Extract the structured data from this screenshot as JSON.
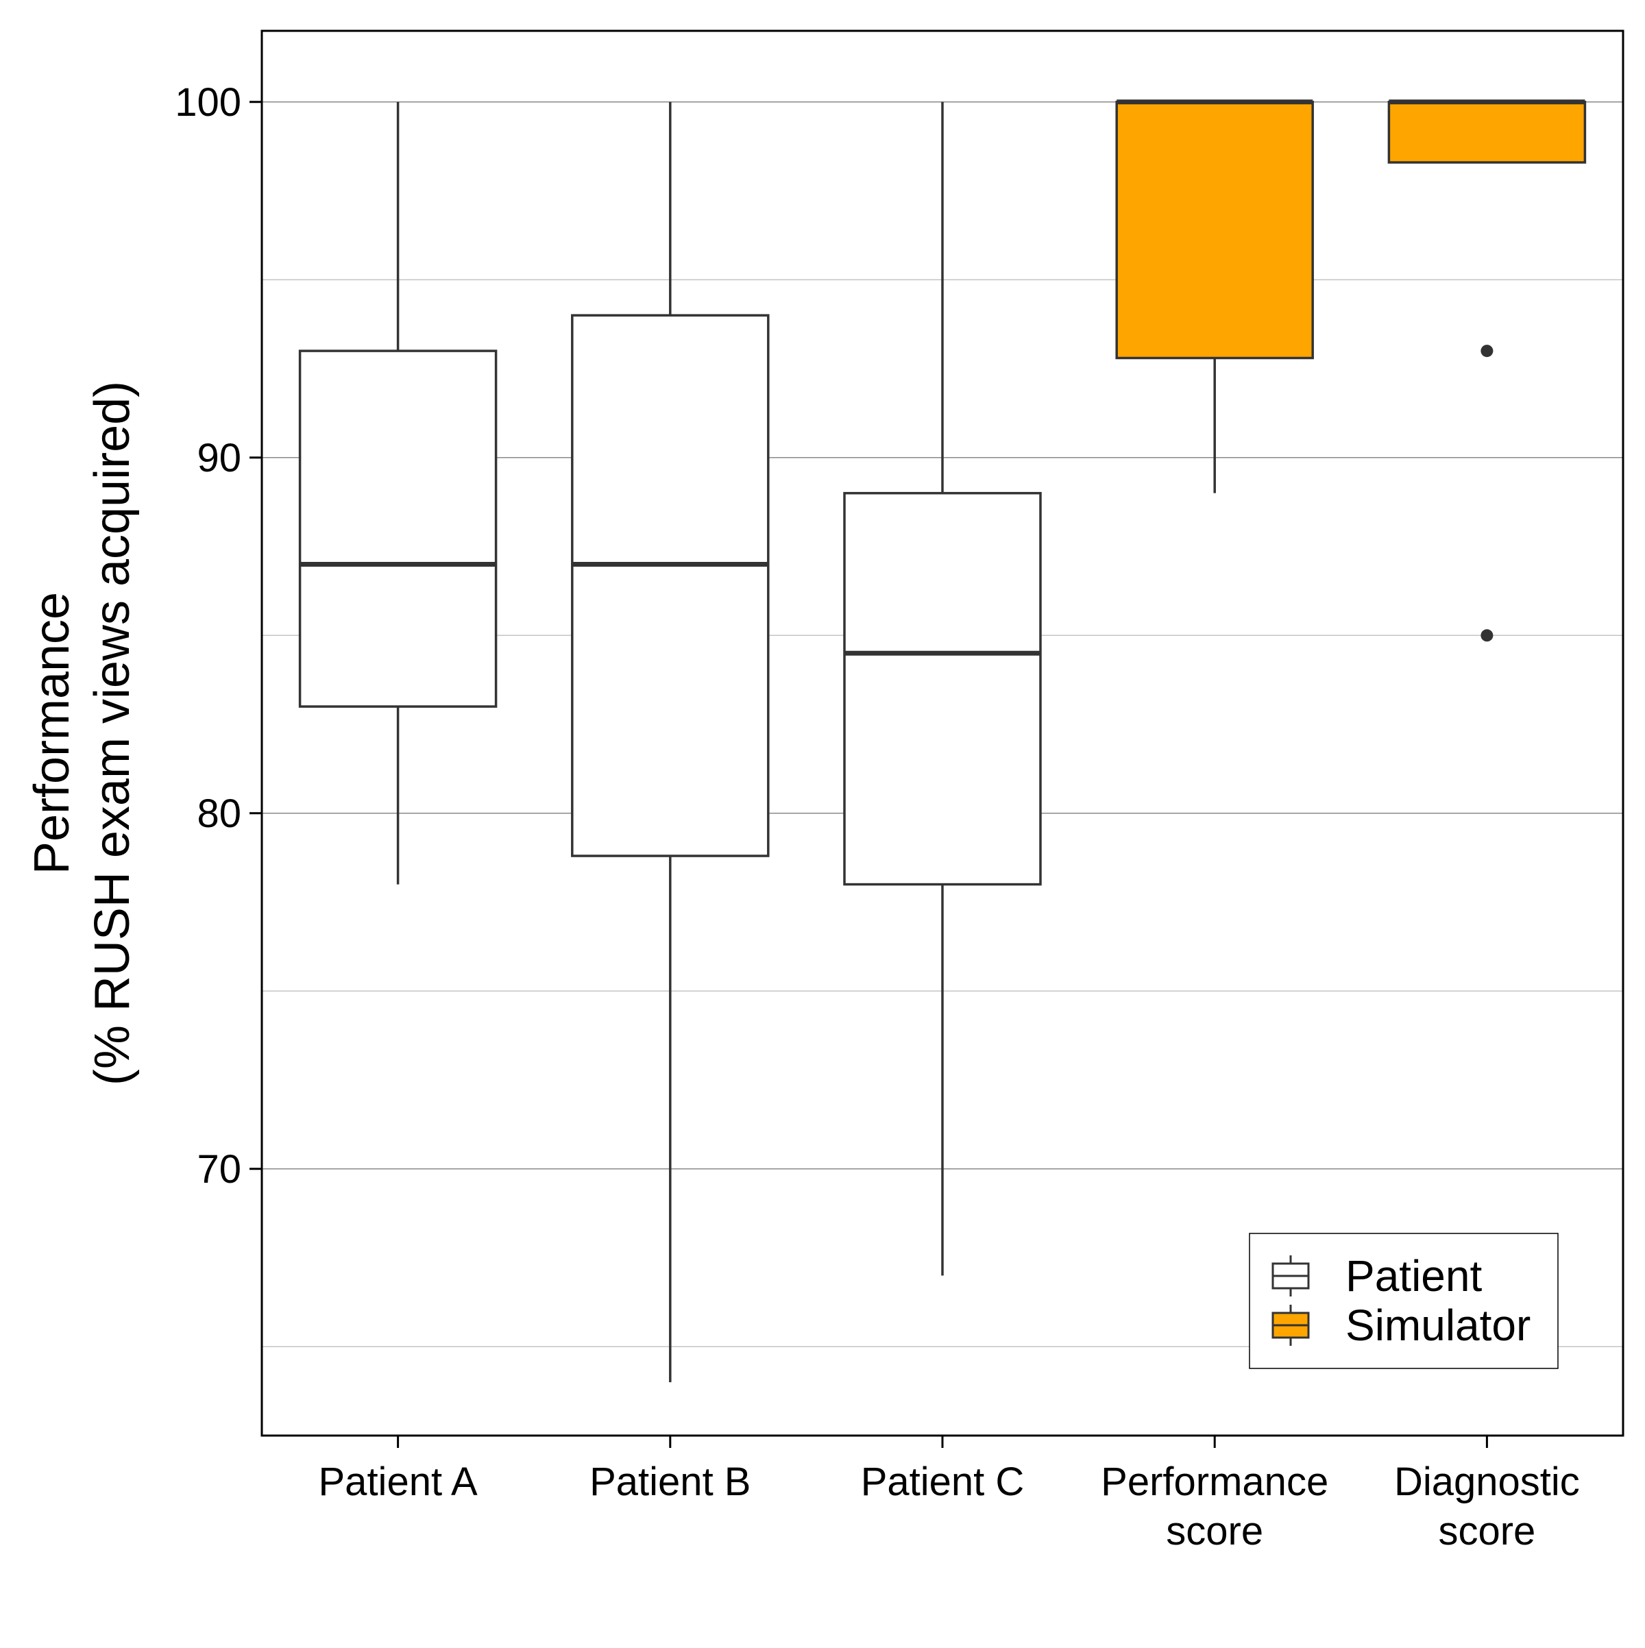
{
  "chart_data": {
    "type": "boxplot",
    "ylabel": [
      "Performance",
      "(% RUSH exam views acquired)"
    ],
    "xlabel": "",
    "ylim": [
      62.5,
      102
    ],
    "yticks": [
      70,
      80,
      90,
      100
    ],
    "minor_gridlines": [
      65,
      75,
      85,
      95
    ],
    "grid": true,
    "legend": {
      "position": "bottom-right",
      "entries": [
        {
          "key": "patient",
          "label": "Patient",
          "color": "#ffffff"
        },
        {
          "key": "simulator",
          "label": "Simulator",
          "color": "#FFA500"
        }
      ]
    },
    "categories": [
      {
        "label": [
          "Patient A"
        ],
        "group": "patient",
        "whisker_low": 78,
        "q1": 83,
        "median": 87,
        "q3": 93,
        "whisker_high": 100,
        "outliers": []
      },
      {
        "label": [
          "Patient B"
        ],
        "group": "patient",
        "whisker_low": 64,
        "q1": 78.8,
        "median": 87,
        "q3": 94,
        "whisker_high": 100,
        "outliers": []
      },
      {
        "label": [
          "Patient C"
        ],
        "group": "patient",
        "whisker_low": 67,
        "q1": 78,
        "median": 84.5,
        "q3": 89,
        "whisker_high": 100,
        "outliers": []
      },
      {
        "label": [
          "Performance",
          "score"
        ],
        "group": "simulator",
        "whisker_low": 89,
        "q1": 92.8,
        "median": 100,
        "q3": 100,
        "whisker_high": 100,
        "outliers": []
      },
      {
        "label": [
          "Diagnostic",
          "score"
        ],
        "group": "simulator",
        "whisker_low": 98.3,
        "q1": 98.3,
        "median": 100,
        "q3": 100,
        "whisker_high": 100,
        "outliers": [
          93,
          85
        ]
      }
    ],
    "colors": {
      "box_stroke": "#333333",
      "axis": "#000000",
      "major_grid": "#8a8a8a",
      "minor_grid": "#c4c4c4"
    }
  }
}
